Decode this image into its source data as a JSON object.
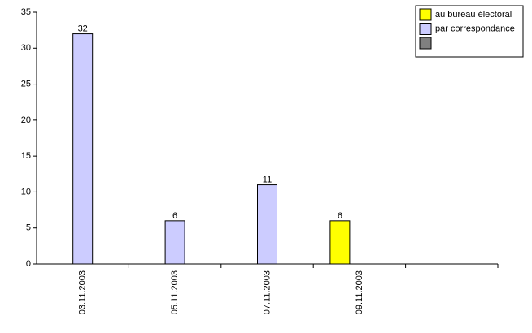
{
  "chart_data": {
    "type": "bar",
    "categories": [
      "03.11.2003",
      "05.11.2003",
      "07.11.2003",
      "09.11.2003",
      null
    ],
    "series": [
      {
        "name": "au bureau électoral",
        "color": "#ffff00",
        "values": [
          null,
          null,
          null,
          6,
          null
        ]
      },
      {
        "name": "par correspondance",
        "color": "#ccccff",
        "values": [
          32,
          6,
          11,
          null,
          null
        ]
      },
      {
        "name": null,
        "color": "#808080",
        "values": [
          null,
          null,
          null,
          null,
          null
        ]
      }
    ],
    "ylim": [
      0,
      35
    ],
    "yticks": [
      0,
      5,
      10,
      15,
      20,
      25,
      30,
      35
    ],
    "grid": false,
    "legend": "top-right"
  }
}
